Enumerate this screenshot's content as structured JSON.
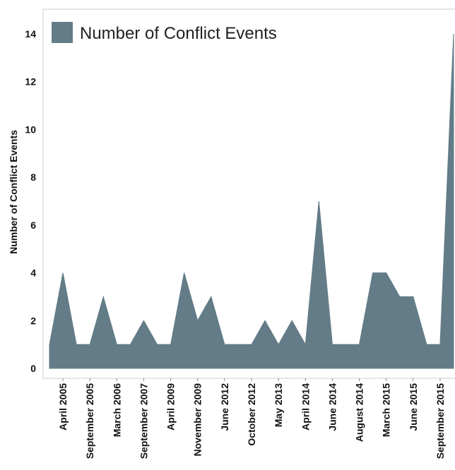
{
  "colors": {
    "area_fill": "#637c87",
    "axis": "#cccccc"
  },
  "chart_data": {
    "type": "area",
    "title": "",
    "xlabel": "",
    "ylabel": "Number of Conflict Events",
    "ylim": [
      0,
      14
    ],
    "yticks": [
      0,
      2,
      4,
      6,
      8,
      10,
      12,
      14
    ],
    "grid": false,
    "legend_position": "top-left",
    "series": [
      {
        "name": "Number of Conflict Events",
        "values": [
          1,
          4,
          1,
          1,
          3,
          1,
          1,
          2,
          1,
          1,
          4,
          2,
          3,
          1,
          1,
          1,
          2,
          1,
          2,
          1,
          7,
          1,
          1,
          1,
          4,
          4,
          3,
          3,
          1,
          1,
          14
        ]
      }
    ],
    "tick_labels": [
      {
        "index": 1,
        "label": "April 2005"
      },
      {
        "index": 3,
        "label": "September 2005"
      },
      {
        "index": 5,
        "label": "March 2006"
      },
      {
        "index": 7,
        "label": "September 2007"
      },
      {
        "index": 9,
        "label": "April 2009"
      },
      {
        "index": 11,
        "label": "November 2009"
      },
      {
        "index": 13,
        "label": "June 2012"
      },
      {
        "index": 15,
        "label": "October 2012"
      },
      {
        "index": 17,
        "label": "May 2013"
      },
      {
        "index": 19,
        "label": "April 2014"
      },
      {
        "index": 21,
        "label": "June 2014"
      },
      {
        "index": 23,
        "label": "August 2014"
      },
      {
        "index": 25,
        "label": "March 2015"
      },
      {
        "index": 27,
        "label": "June 2015"
      },
      {
        "index": 29,
        "label": "September 2015"
      }
    ]
  }
}
